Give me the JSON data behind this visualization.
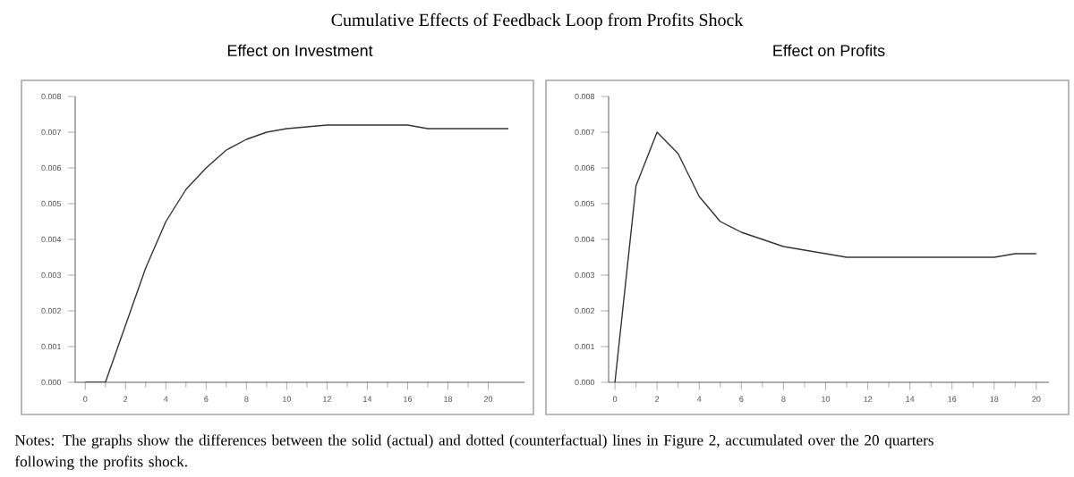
{
  "chart_data": [
    {
      "type": "line",
      "title": "Effect on Investment",
      "annotations": [
        "Cumulative Effects of Feedback Loop from Profits Shock"
      ],
      "x": [
        0,
        1,
        2,
        3,
        4,
        5,
        6,
        7,
        8,
        9,
        10,
        11,
        12,
        13,
        14,
        15,
        16,
        17,
        18,
        19,
        20,
        21
      ],
      "series": [
        {
          "color": "#333333",
          "values": [
            0,
            0,
            0.0016,
            0.0032,
            0.0045,
            0.0054,
            0.006,
            0.0065,
            0.0068,
            0.007,
            0.0071,
            0.00715,
            0.0072,
            0.0072,
            0.0072,
            0.0072,
            0.0072,
            0.0071,
            0.0071,
            0.0071,
            0.0071,
            0.0071
          ]
        }
      ],
      "xlim": [
        -0.5,
        21.8
      ],
      "ylim": [
        0,
        0.008
      ],
      "xticks": [
        0,
        2,
        4,
        6,
        8,
        10,
        12,
        14,
        16,
        18,
        20
      ],
      "yticks": [
        {
          "value": 0,
          "label": "0.000"
        },
        {
          "value": 0.001,
          "label": "0.001"
        },
        {
          "value": 0.002,
          "label": "0.002"
        },
        {
          "value": 0.003,
          "label": "0.003"
        },
        {
          "value": 0.004,
          "label": "0.004"
        },
        {
          "value": 0.005,
          "label": "0.005"
        },
        {
          "value": 0.006,
          "label": "0.006"
        },
        {
          "value": 0.007,
          "label": "0.007"
        },
        {
          "value": 0.008,
          "label": "0.008"
        }
      ]
    },
    {
      "type": "line",
      "title": "Effect on Profits",
      "annotations": [
        "Notes:  The graphs show the differences between the solid (actual) and dotted (counterfactual) lines in Figure 2, accumulated over the 20 quarters following the profits shock."
      ],
      "x": [
        0,
        1,
        2,
        3,
        4,
        5,
        6,
        7,
        8,
        9,
        10,
        11,
        12,
        13,
        14,
        15,
        16,
        17,
        18,
        19,
        20
      ],
      "series": [
        {
          "color": "#333333",
          "values": [
            0,
            0.0055,
            0.007,
            0.0064,
            0.0052,
            0.0045,
            0.0042,
            0.004,
            0.0038,
            0.0037,
            0.0036,
            0.0035,
            0.0035,
            0.0035,
            0.0035,
            0.0035,
            0.0035,
            0.0035,
            0.0035,
            0.0036,
            0.0036
          ]
        }
      ],
      "xlim": [
        -0.3,
        20.6
      ],
      "ylim": [
        0,
        0.008
      ],
      "xticks": [
        0,
        2,
        4,
        6,
        8,
        10,
        12,
        14,
        16,
        18,
        20
      ],
      "yticks": [
        {
          "value": 0,
          "label": "0.000"
        },
        {
          "value": 0.001,
          "label": "0.001"
        },
        {
          "value": 0.002,
          "label": "0.002"
        },
        {
          "value": 0.003,
          "label": "0.003"
        },
        {
          "value": 0.004,
          "label": "0.004"
        },
        {
          "value": 0.005,
          "label": "0.005"
        },
        {
          "value": 0.006,
          "label": "0.006"
        },
        {
          "value": 0.007,
          "label": "0.007"
        },
        {
          "value": 0.008,
          "label": "0.008"
        }
      ]
    }
  ]
}
